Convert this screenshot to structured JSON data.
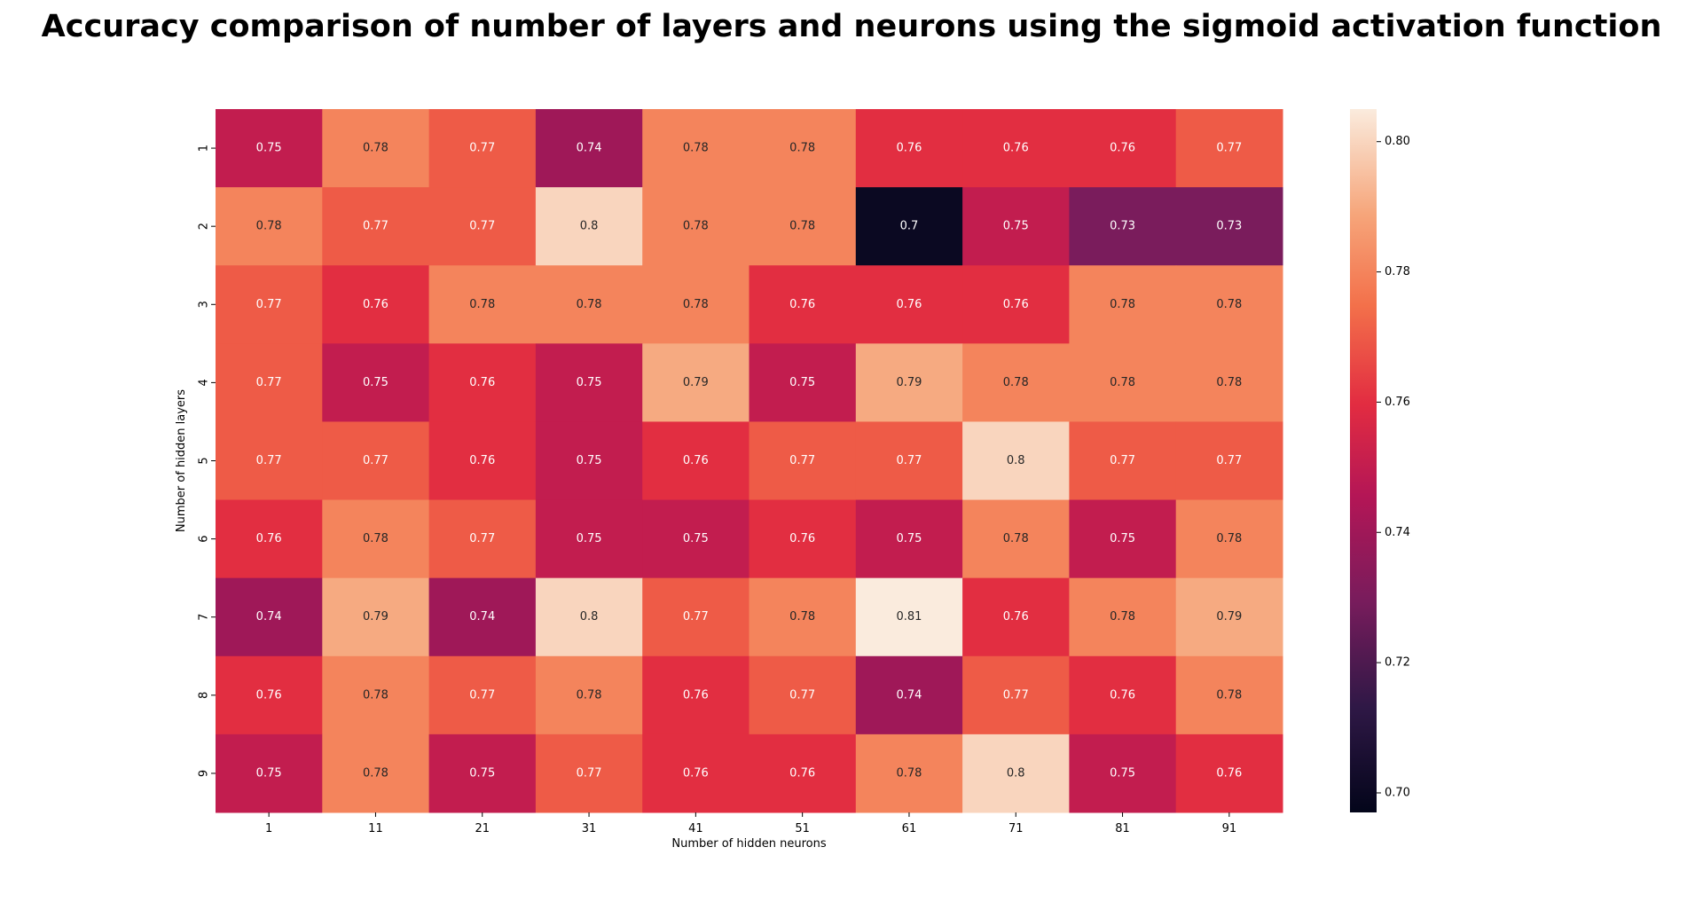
{
  "chart_data": {
    "type": "heatmap",
    "title": "Accuracy comparison of number of layers and neurons using the sigmoid activation function",
    "xlabel": "Number of hidden neurons",
    "ylabel": "Number of hidden layers",
    "x_categories": [
      "1",
      "11",
      "21",
      "31",
      "41",
      "51",
      "61",
      "71",
      "81",
      "91"
    ],
    "y_categories": [
      "1",
      "2",
      "3",
      "4",
      "5",
      "6",
      "7",
      "8",
      "9"
    ],
    "values": [
      [
        0.75,
        0.78,
        0.77,
        0.74,
        0.78,
        0.78,
        0.76,
        0.76,
        0.76,
        0.77
      ],
      [
        0.78,
        0.77,
        0.77,
        0.8,
        0.78,
        0.78,
        0.7,
        0.75,
        0.73,
        0.73
      ],
      [
        0.77,
        0.76,
        0.78,
        0.78,
        0.78,
        0.76,
        0.76,
        0.76,
        0.78,
        0.78
      ],
      [
        0.77,
        0.75,
        0.76,
        0.75,
        0.79,
        0.75,
        0.79,
        0.78,
        0.78,
        0.78
      ],
      [
        0.77,
        0.77,
        0.76,
        0.75,
        0.76,
        0.77,
        0.77,
        0.8,
        0.77,
        0.77
      ],
      [
        0.76,
        0.78,
        0.77,
        0.75,
        0.75,
        0.76,
        0.75,
        0.78,
        0.75,
        0.78
      ],
      [
        0.74,
        0.79,
        0.74,
        0.8,
        0.77,
        0.78,
        0.81,
        0.76,
        0.78,
        0.79
      ],
      [
        0.76,
        0.78,
        0.77,
        0.78,
        0.76,
        0.77,
        0.74,
        0.77,
        0.76,
        0.78
      ],
      [
        0.75,
        0.78,
        0.75,
        0.77,
        0.76,
        0.76,
        0.78,
        0.8,
        0.75,
        0.76
      ]
    ],
    "colorbar": {
      "min": 0.697,
      "max": 0.805,
      "ticks": [
        "0.70",
        "0.72",
        "0.74",
        "0.76",
        "0.78",
        "0.80"
      ]
    },
    "colormap": "rocket"
  }
}
